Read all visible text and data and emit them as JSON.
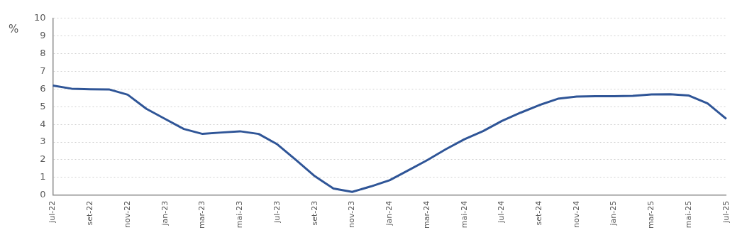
{
  "chart_data": {
    "type": "line",
    "ylabel": "%",
    "categories": [
      "jul-22",
      null,
      "set-22",
      null,
      "nov-22",
      null,
      "jan-23",
      null,
      "mar-23",
      null,
      "mai-23",
      null,
      "jul-23",
      null,
      "set-23",
      null,
      "nov-23",
      null,
      "jan-24",
      null,
      "mar-24",
      null,
      "mai-24",
      null,
      "jul-24",
      null,
      "set-24",
      null,
      "nov-24",
      null,
      "jan-25",
      null,
      "mar-25",
      null,
      "mai-25",
      null,
      "jul-25"
    ],
    "series": [
      {
        "color": "#2f5597",
        "values": [
          6.2,
          6.02,
          5.99,
          5.98,
          5.68,
          4.88,
          4.31,
          3.74,
          3.46,
          3.54,
          3.61,
          3.46,
          2.87,
          1.98,
          1.07,
          0.37,
          0.18,
          0.49,
          0.84,
          1.4,
          1.97,
          2.59,
          3.16,
          3.62,
          4.19,
          4.66,
          5.09,
          5.45,
          5.57,
          5.59,
          5.59,
          5.61,
          5.69,
          5.7,
          5.63,
          5.19,
          4.31
        ]
      }
    ],
    "ylim": [
      0,
      10
    ],
    "yticks": [
      0,
      1,
      2,
      3,
      4,
      5,
      6,
      7,
      8,
      9,
      10
    ],
    "grid": "y",
    "legend": false,
    "marker": "none",
    "line_style": "solid"
  }
}
